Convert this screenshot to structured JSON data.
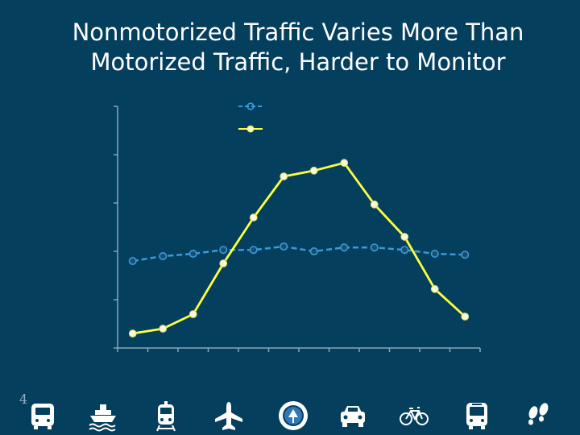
{
  "title": "Nonmotorized Traffic Varies More Than Motorized Traffic, Harder to Monitor",
  "page_number": "4",
  "colors": {
    "background": "#053f5e",
    "motorized": "#3a9ad9",
    "nonmotorized": "#ffff3d",
    "axis": "#8aa5b6",
    "icon": "#ffffff"
  },
  "mode_icons": [
    "bus-icon",
    "ferry-icon",
    "train-icon",
    "airplane-icon",
    "dot-seal-icon",
    "car-icon",
    "bicycle-icon",
    "bus-front-icon",
    "footprints-icon"
  ],
  "chart_data": {
    "type": "line",
    "title": "",
    "xlabel": "",
    "ylabel": "",
    "x": [
      1,
      2,
      3,
      4,
      5,
      6,
      7,
      8,
      9,
      10,
      11,
      12
    ],
    "ylim": [
      0,
      5
    ],
    "grid": false,
    "legend": "top-center",
    "series": [
      {
        "name": "",
        "style": "dashed",
        "marker": "open-circle",
        "color": "#3a9ad9",
        "values": [
          1.8,
          1.9,
          1.95,
          2.03,
          2.03,
          2.1,
          2.0,
          2.08,
          2.08,
          2.03,
          1.95,
          1.93
        ]
      },
      {
        "name": "",
        "style": "solid",
        "marker": "filled-circle",
        "color": "#ffff3d",
        "values": [
          0.3,
          0.4,
          0.7,
          1.75,
          2.7,
          3.55,
          3.67,
          3.83,
          2.97,
          2.3,
          1.22,
          0.65
        ]
      }
    ]
  }
}
